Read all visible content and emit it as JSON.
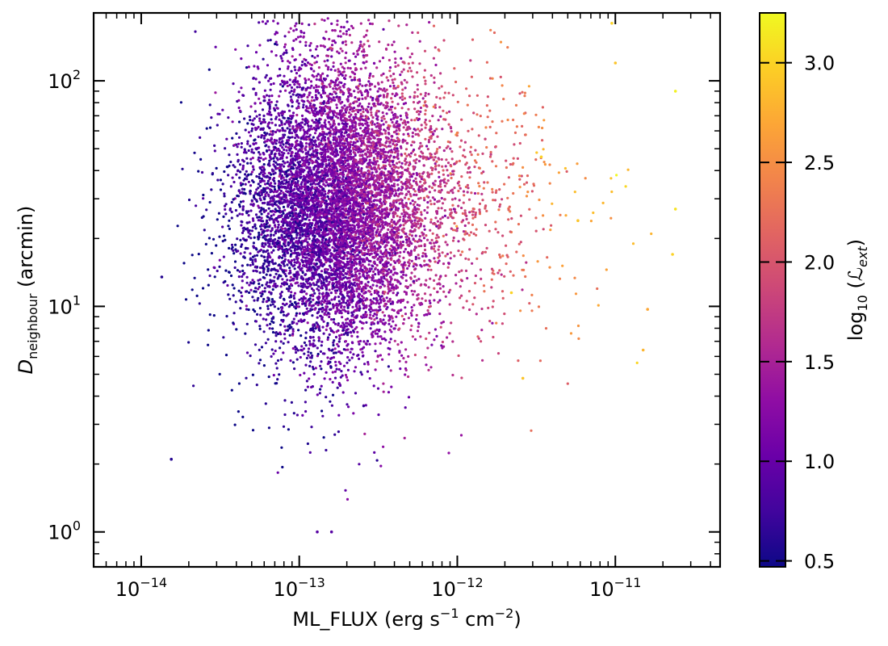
{
  "chart_data": {
    "type": "scatter",
    "title": "",
    "xlabel": "ML_FLUX (erg s$^{-1}$ cm$^{-2}$)",
    "ylabel": "D_neighbour (arcmin)",
    "xlabel_text": {
      "main": "ML_FLUX (erg s",
      "sup1": "−1",
      "mid": " cm",
      "sup2": "−2",
      "end": ")"
    },
    "ylabel_text": {
      "base": "D",
      "sub": "neighbour",
      "rest": " (arcmin)"
    },
    "xscale": "log",
    "yscale": "log",
    "xlim": [
      5e-15,
      4.6e-11
    ],
    "ylim": [
      0.7,
      200
    ],
    "x_major_ticks": [
      {
        "value": 1e-14,
        "base": "10",
        "exp": "−14"
      },
      {
        "value": 1e-13,
        "base": "10",
        "exp": "−13"
      },
      {
        "value": 1e-12,
        "base": "10",
        "exp": "−12"
      },
      {
        "value": 1e-11,
        "base": "10",
        "exp": "−11"
      }
    ],
    "y_major_ticks": [
      {
        "value": 1,
        "base": "10",
        "exp": "0"
      },
      {
        "value": 10,
        "base": "10",
        "exp": "1"
      },
      {
        "value": 100,
        "base": "10",
        "exp": "2"
      }
    ],
    "color_variable": "log10 (L_ext)",
    "colorbar": {
      "label_base": "log",
      "label_sub": "10",
      "label_rest": " (",
      "label_var": "ℒ",
      "label_var_sub": "ext",
      "label_close": ")",
      "cmap": "plasma",
      "range": [
        0.47,
        3.25
      ],
      "ticks": [
        "0.5",
        "1.0",
        "1.5",
        "2.0",
        "2.5",
        "3.0"
      ],
      "tick_values": [
        0.5,
        1.0,
        1.5,
        2.0,
        2.5,
        3.0
      ]
    },
    "point_count_approx": 12000,
    "distribution": {
      "description": "Dense cluster centered near ML_FLUX 1.5e-13 and D 30 arcmin; colour rises with flux",
      "x_log10_center": -12.8,
      "x_log10_spread": 0.3,
      "y_log10_center": 1.45,
      "y_log10_spread": 0.3,
      "x_log10_min": -13.85,
      "x_log10_max": -10.62,
      "y_log10_min": 0.0,
      "y_log10_max": 2.28,
      "color_log10_at_low_flux": 0.55,
      "color_log10_at_high_flux": 3.2,
      "bright_sources": [
        {
          "x": 2.4e-11,
          "y": 90,
          "c": 3.2
        },
        {
          "x": 2.4e-11,
          "y": 27,
          "c": 3.1
        },
        {
          "x": 2.3e-11,
          "y": 17,
          "c": 3.0
        },
        {
          "x": 9.5e-12,
          "y": 180,
          "c": 3.0
        },
        {
          "x": 1e-11,
          "y": 120,
          "c": 2.9
        },
        {
          "x": 1.5e-11,
          "y": 6.4,
          "c": 2.8
        },
        {
          "x": 1.6e-11,
          "y": 9.7,
          "c": 2.7
        },
        {
          "x": 5.8e-12,
          "y": 24,
          "c": 2.9
        },
        {
          "x": 3.4e-12,
          "y": 46,
          "c": 3.0
        },
        {
          "x": 2.2e-12,
          "y": 11.5,
          "c": 3.0
        },
        {
          "x": 2.6e-12,
          "y": 4.8,
          "c": 2.9
        },
        {
          "x": 1.4e-13,
          "y": 13.5,
          "c": 0.8
        },
        {
          "x": 1.55e-14,
          "y": 2.1,
          "c": 0.6
        },
        {
          "x": 1.35e-14,
          "y": 13.5,
          "c": 0.6
        },
        {
          "x": 1.3e-13,
          "y": 1.0,
          "c": 0.9
        },
        {
          "x": 1.6e-13,
          "y": 1.0,
          "c": 0.9
        }
      ]
    }
  }
}
